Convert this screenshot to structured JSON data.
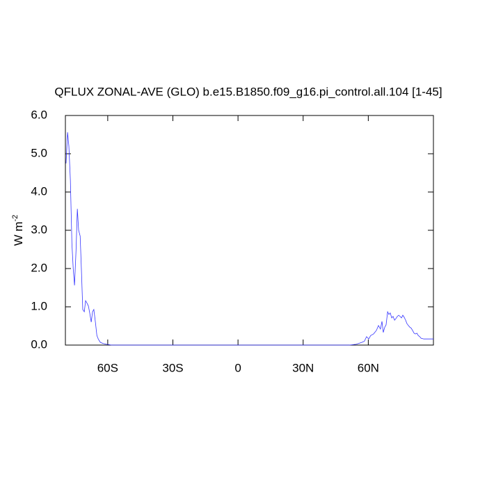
{
  "chart_data": {
    "type": "line",
    "title": "QFLUX ZONAL-AVE (GLO) b.e15.B1850.f09_g16.pi_control.all.104 [1-45]",
    "ylabel": {
      "text": "W m",
      "superscript": "-2"
    },
    "x": [
      -79.2,
      -78.5,
      -77.9,
      -77.2,
      -76.5,
      -75.9,
      -75.3,
      -74.6,
      -74.0,
      -73.4,
      -72.7,
      -72.1,
      -71.5,
      -70.8,
      -70.2,
      -69.5,
      -68.9,
      -68.3,
      -67.6,
      -67.0,
      -66.4,
      -65.6,
      -65.0,
      -64.3,
      -63.4,
      -62.1,
      -60.5,
      -58.2,
      -50,
      -20,
      0,
      20,
      45,
      51.2,
      54.4,
      57,
      58.2,
      59.2,
      60.2,
      61.1,
      62.4,
      63.7,
      64.7,
      65.6,
      66.3,
      66.9,
      67.6,
      68.2,
      68.9,
      69.5,
      70.1,
      70.8,
      71.4,
      72.1,
      72.7,
      73.4,
      74.0,
      74.6,
      75.3,
      75.9,
      76.5,
      77.2,
      77.8,
      78.5,
      79.1,
      79.8,
      80.4,
      81.1,
      81.7,
      82.4,
      83.0,
      83.7,
      84.3,
      85.6,
      88.2,
      90
    ],
    "series": [
      {
        "color": "#3333ff",
        "values": [
          4.75,
          5.56,
          5.2,
          4.3,
          2.65,
          2.0,
          1.56,
          2.47,
          3.56,
          3.0,
          2.85,
          1.93,
          0.93,
          0.87,
          1.16,
          1.09,
          1.02,
          0.84,
          0.6,
          0.87,
          0.93,
          0.56,
          0.25,
          0.15,
          0.07,
          0.04,
          0.02,
          0,
          0,
          0,
          0,
          0,
          0,
          0,
          0.02,
          0.07,
          0.1,
          0.22,
          0.16,
          0.25,
          0.29,
          0.38,
          0.51,
          0.42,
          0.62,
          0.33,
          0.47,
          0.53,
          0.87,
          0.8,
          0.84,
          0.71,
          0.75,
          0.65,
          0.69,
          0.75,
          0.78,
          0.75,
          0.71,
          0.78,
          0.73,
          0.65,
          0.56,
          0.51,
          0.47,
          0.44,
          0.38,
          0.31,
          0.29,
          0.31,
          0.25,
          0.22,
          0.18,
          0.16,
          0.16,
          0.16
        ]
      }
    ],
    "xlim": [
      -79.5,
      90
    ],
    "xticks": [
      {
        "value": -60,
        "label": "60S"
      },
      {
        "value": -30,
        "label": "30S"
      },
      0,
      {
        "value": 30,
        "label": "30N"
      },
      {
        "value": 60,
        "label": "60N"
      }
    ],
    "ylim": [
      0,
      6
    ],
    "yticks": [
      {
        "value": 0,
        "label": "0.0"
      },
      {
        "value": 1,
        "label": "1.0"
      },
      {
        "value": 2,
        "label": "2.0"
      },
      {
        "value": 3,
        "label": "3.0"
      },
      {
        "value": 4,
        "label": "4.0"
      },
      {
        "value": 5,
        "label": "5.0"
      },
      {
        "value": 6,
        "label": "6.0"
      }
    ]
  }
}
